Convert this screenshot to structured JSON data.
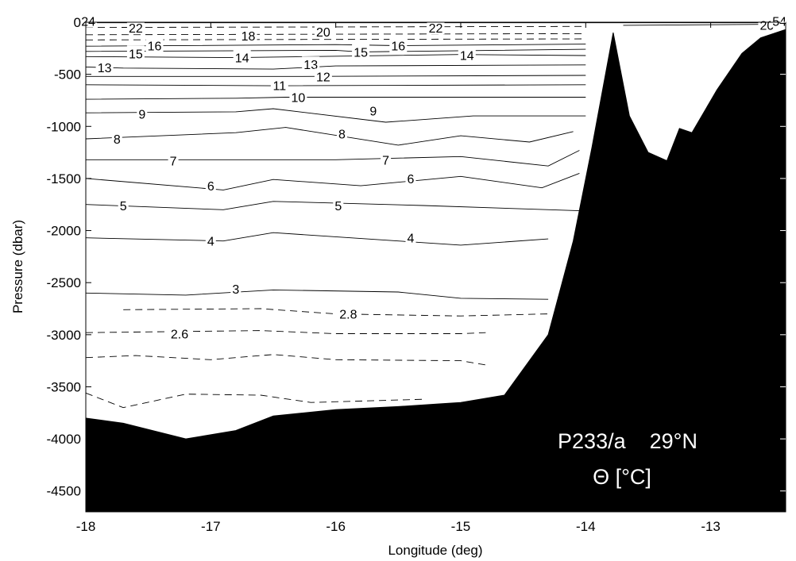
{
  "chart_data": {
    "type": "contour",
    "xlabel": "Longitude (deg)",
    "ylabel": "Pressure (dbar)",
    "xlim": [
      -18,
      -12.4
    ],
    "ylim": [
      -4700,
      0
    ],
    "x_ticks": [
      {
        "value": -18,
        "label": "-18"
      },
      {
        "value": -17,
        "label": "-17"
      },
      {
        "value": -16,
        "label": "-16"
      },
      {
        "value": -15,
        "label": "-15"
      },
      {
        "value": -14,
        "label": "-14"
      },
      {
        "value": -13,
        "label": "-13"
      }
    ],
    "y_ticks": [
      {
        "value": 0,
        "label": "0"
      },
      {
        "value": -500,
        "label": "-500"
      },
      {
        "value": -1000,
        "label": "-1000"
      },
      {
        "value": -1500,
        "label": "-1500"
      },
      {
        "value": -2000,
        "label": "-2000"
      },
      {
        "value": -2500,
        "label": "-2500"
      },
      {
        "value": -3000,
        "label": "-3000"
      },
      {
        "value": -3500,
        "label": "-3500"
      },
      {
        "value": -4000,
        "label": "-4000"
      },
      {
        "value": -4500,
        "label": "-4500"
      }
    ],
    "annotations": [
      "P233/a    29°N",
      "Θ [°C]"
    ],
    "bathymetry": [
      [
        -18,
        -3800
      ],
      [
        -17.7,
        -3850
      ],
      [
        -17.2,
        -4000
      ],
      [
        -16.8,
        -3920
      ],
      [
        -16.5,
        -3780
      ],
      [
        -16,
        -3720
      ],
      [
        -15.5,
        -3690
      ],
      [
        -15,
        -3650
      ],
      [
        -14.65,
        -3580
      ],
      [
        -14.3,
        -3000
      ],
      [
        -14.1,
        -2100
      ],
      [
        -13.95,
        -1200
      ],
      [
        -13.78,
        -100
      ],
      [
        -13.65,
        -900
      ],
      [
        -13.5,
        -1250
      ],
      [
        -13.35,
        -1330
      ],
      [
        -13.25,
        -1020
      ],
      [
        -13.15,
        -1060
      ],
      [
        -12.95,
        -650
      ],
      [
        -12.75,
        -300
      ],
      [
        -12.6,
        -150
      ],
      [
        -12.4,
        -70
      ]
    ],
    "contours": [
      {
        "level": "24",
        "style": "solid",
        "points": [
          [
            -18,
            -5
          ],
          [
            -12.4,
            -5
          ]
        ],
        "labels": [
          [
            -17.98,
            10
          ]
        ]
      },
      {
        "level": "22",
        "style": "dashed",
        "points": [
          [
            -18,
            -50
          ],
          [
            -14,
            -40
          ]
        ],
        "labels": [
          [
            -17.6,
            -55
          ],
          [
            -15.2,
            -55
          ]
        ]
      },
      {
        "level": "20",
        "style": "dashed",
        "points": [
          [
            -18,
            -120
          ],
          [
            -14,
            -110
          ]
        ],
        "labels": [
          [
            -16.1,
            -90
          ],
          [
            -12.55,
            -25
          ]
        ]
      },
      {
        "level": "54",
        "style": "solid",
        "points": [
          [
            -13.7,
            -30
          ],
          [
            -12.45,
            -20
          ]
        ],
        "labels": [
          [
            -12.45,
            10
          ]
        ]
      },
      {
        "level": "18",
        "style": "dashed",
        "points": [
          [
            -18,
            -170
          ],
          [
            -14,
            -160
          ]
        ],
        "labels": [
          [
            -16.7,
            -130
          ]
        ]
      },
      {
        "level": "16",
        "style": "solid",
        "points": [
          [
            -18,
            -230
          ],
          [
            -16,
            -215
          ],
          [
            -15.5,
            -225
          ],
          [
            -14,
            -210
          ]
        ],
        "labels": [
          [
            -17.45,
            -225
          ],
          [
            -15.5,
            -225
          ]
        ]
      },
      {
        "level": "15",
        "style": "solid",
        "points": [
          [
            -18,
            -280
          ],
          [
            -16,
            -270
          ],
          [
            -15.8,
            -285
          ],
          [
            -14,
            -260
          ]
        ],
        "labels": [
          [
            -17.6,
            -300
          ],
          [
            -15.8,
            -285
          ]
        ]
      },
      {
        "level": "14",
        "style": "solid",
        "points": [
          [
            -18,
            -330
          ],
          [
            -16.8,
            -340
          ],
          [
            -15,
            -310
          ],
          [
            -14,
            -320
          ]
        ],
        "labels": [
          [
            -16.75,
            -340
          ],
          [
            -14.95,
            -315
          ]
        ]
      },
      {
        "level": "13",
        "style": "solid",
        "points": [
          [
            -18,
            -430
          ],
          [
            -17.7,
            -440
          ],
          [
            -16.5,
            -450
          ],
          [
            -16,
            -420
          ],
          [
            -14,
            -410
          ]
        ],
        "labels": [
          [
            -17.85,
            -435
          ],
          [
            -16.2,
            -405
          ]
        ]
      },
      {
        "level": "12",
        "style": "solid",
        "points": [
          [
            -18,
            -520
          ],
          [
            -16.3,
            -520
          ],
          [
            -14,
            -510
          ]
        ],
        "labels": [
          [
            -16.1,
            -520
          ]
        ]
      },
      {
        "level": "11",
        "style": "solid",
        "points": [
          [
            -18,
            -600
          ],
          [
            -16.5,
            -610
          ],
          [
            -14,
            -600
          ]
        ],
        "labels": [
          [
            -16.45,
            -605
          ]
        ]
      },
      {
        "level": "10",
        "style": "solid",
        "points": [
          [
            -18,
            -740
          ],
          [
            -16.8,
            -730
          ],
          [
            -16.4,
            -720
          ],
          [
            -14,
            -720
          ]
        ],
        "labels": [
          [
            -16.3,
            -720
          ]
        ]
      },
      {
        "level": "9",
        "style": "solid",
        "points": [
          [
            -18,
            -870
          ],
          [
            -16.8,
            -860
          ],
          [
            -16.5,
            -830
          ],
          [
            -15.6,
            -960
          ],
          [
            -14.9,
            -900
          ],
          [
            -14,
            -900
          ]
        ],
        "labels": [
          [
            -17.55,
            -880
          ],
          [
            -15.7,
            -850
          ]
        ]
      },
      {
        "level": "8",
        "style": "solid",
        "points": [
          [
            -18,
            -1120
          ],
          [
            -16.8,
            -1060
          ],
          [
            -16.4,
            -1010
          ],
          [
            -15.5,
            -1180
          ],
          [
            -15,
            -1090
          ],
          [
            -14.45,
            -1150
          ],
          [
            -14.1,
            -1050
          ]
        ],
        "labels": [
          [
            -17.75,
            -1120
          ],
          [
            -15.95,
            -1070
          ]
        ]
      },
      {
        "level": "7",
        "style": "solid",
        "points": [
          [
            -18,
            -1320
          ],
          [
            -16,
            -1320
          ],
          [
            -15,
            -1290
          ],
          [
            -14.3,
            -1380
          ],
          [
            -14.05,
            -1230
          ]
        ],
        "labels": [
          [
            -17.3,
            -1330
          ],
          [
            -15.6,
            -1320
          ]
        ]
      },
      {
        "level": "6",
        "style": "solid",
        "points": [
          [
            -18,
            -1500
          ],
          [
            -16.9,
            -1610
          ],
          [
            -16.5,
            -1510
          ],
          [
            -15.8,
            -1570
          ],
          [
            -15,
            -1480
          ],
          [
            -14.35,
            -1590
          ],
          [
            -14.05,
            -1450
          ]
        ],
        "labels": [
          [
            -17,
            -1570
          ],
          [
            -15.4,
            -1500
          ]
        ]
      },
      {
        "level": "5",
        "style": "solid",
        "points": [
          [
            -18,
            -1750
          ],
          [
            -16.9,
            -1800
          ],
          [
            -16.5,
            -1720
          ],
          [
            -15.3,
            -1760
          ],
          [
            -14.05,
            -1810
          ]
        ],
        "labels": [
          [
            -17.7,
            -1760
          ],
          [
            -15.98,
            -1760
          ]
        ]
      },
      {
        "level": "4",
        "style": "solid",
        "points": [
          [
            -18,
            -2070
          ],
          [
            -16.9,
            -2100
          ],
          [
            -16.5,
            -2020
          ],
          [
            -15.5,
            -2100
          ],
          [
            -15,
            -2140
          ],
          [
            -14.3,
            -2080
          ]
        ],
        "labels": [
          [
            -17,
            -2100
          ],
          [
            -15.4,
            -2070
          ]
        ]
      },
      {
        "level": "3",
        "style": "solid",
        "points": [
          [
            -18,
            -2600
          ],
          [
            -17.2,
            -2620
          ],
          [
            -16.5,
            -2570
          ],
          [
            -15.5,
            -2590
          ],
          [
            -15,
            -2650
          ],
          [
            -14.3,
            -2660
          ]
        ],
        "labels": [
          [
            -16.8,
            -2560
          ]
        ]
      },
      {
        "level": "2.8",
        "style": "dashed",
        "points": [
          [
            -17.7,
            -2760
          ],
          [
            -16.6,
            -2750
          ],
          [
            -16,
            -2800
          ],
          [
            -15,
            -2820
          ],
          [
            -14.3,
            -2800
          ]
        ],
        "labels": [
          [
            -15.9,
            -2800
          ]
        ]
      },
      {
        "level": "2.6",
        "style": "dashed",
        "points": [
          [
            -18,
            -2980
          ],
          [
            -16.6,
            -2960
          ],
          [
            -16,
            -2990
          ],
          [
            -15,
            -2990
          ],
          [
            -14.8,
            -2980
          ]
        ],
        "labels": [
          [
            -17.25,
            -2990
          ]
        ]
      },
      {
        "level": "",
        "style": "dashed",
        "points": [
          [
            -18,
            -3220
          ],
          [
            -17.6,
            -3200
          ],
          [
            -17,
            -3240
          ],
          [
            -16.5,
            -3190
          ],
          [
            -16,
            -3240
          ],
          [
            -15,
            -3250
          ],
          [
            -14.8,
            -3290
          ]
        ],
        "labels": []
      },
      {
        "level": "",
        "style": "dashed",
        "points": [
          [
            -18,
            -3560
          ],
          [
            -17.7,
            -3700
          ],
          [
            -17.2,
            -3570
          ],
          [
            -16.6,
            -3580
          ],
          [
            -16.2,
            -3650
          ],
          [
            -15.3,
            -3620
          ]
        ],
        "labels": []
      }
    ]
  }
}
